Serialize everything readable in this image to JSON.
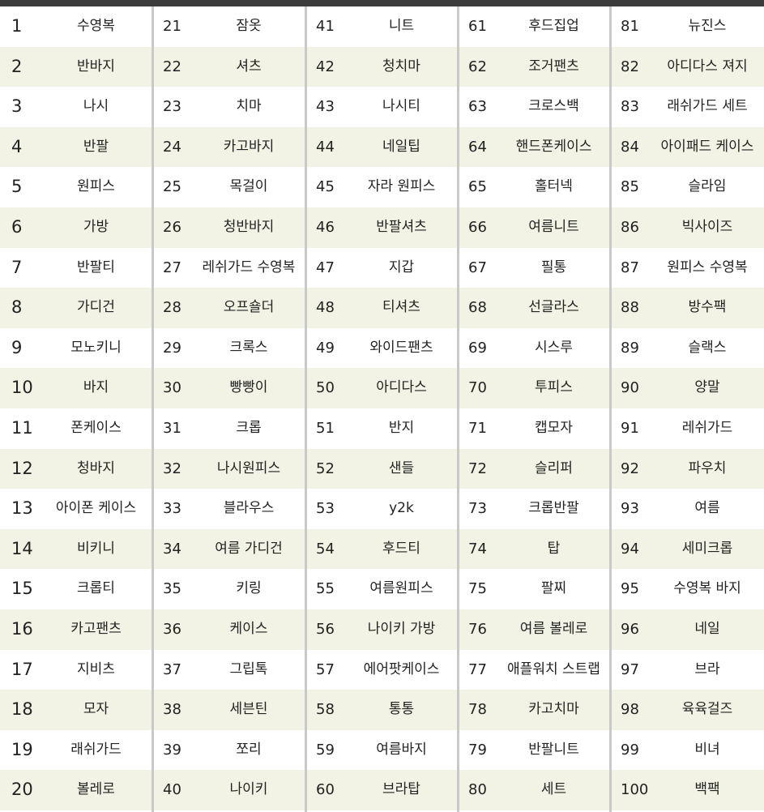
{
  "table": {
    "items": [
      [
        1,
        "수영복"
      ],
      [
        2,
        "반바지"
      ],
      [
        3,
        "나시"
      ],
      [
        4,
        "반팔"
      ],
      [
        5,
        "원피스"
      ],
      [
        6,
        "가방"
      ],
      [
        7,
        "반팔티"
      ],
      [
        8,
        "가디건"
      ],
      [
        9,
        "모노키니"
      ],
      [
        10,
        "바지"
      ],
      [
        11,
        "폰케이스"
      ],
      [
        12,
        "청바지"
      ],
      [
        13,
        "아이폰 케이스"
      ],
      [
        14,
        "비키니"
      ],
      [
        15,
        "크롭티"
      ],
      [
        16,
        "카고팬츠"
      ],
      [
        17,
        "지비츠"
      ],
      [
        18,
        "모자"
      ],
      [
        19,
        "래쉬가드"
      ],
      [
        20,
        "볼레로"
      ],
      [
        21,
        "잠옷"
      ],
      [
        22,
        "셔츠"
      ],
      [
        23,
        "치마"
      ],
      [
        24,
        "카고바지"
      ],
      [
        25,
        "목걸이"
      ],
      [
        26,
        "청반바지"
      ],
      [
        27,
        "레쉬가드 수영복"
      ],
      [
        28,
        "오프숄더"
      ],
      [
        29,
        "크록스"
      ],
      [
        30,
        "빵빵이"
      ],
      [
        31,
        "크롭"
      ],
      [
        32,
        "나시원피스"
      ],
      [
        33,
        "블라우스"
      ],
      [
        34,
        "여름 가디건"
      ],
      [
        35,
        "키링"
      ],
      [
        36,
        "케이스"
      ],
      [
        37,
        "그립톡"
      ],
      [
        38,
        "세븐틴"
      ],
      [
        39,
        "쪼리"
      ],
      [
        40,
        "나이키"
      ],
      [
        41,
        "니트"
      ],
      [
        42,
        "청치마"
      ],
      [
        43,
        "나시티"
      ],
      [
        44,
        "네일팁"
      ],
      [
        45,
        "자라 원피스"
      ],
      [
        46,
        "반팔셔츠"
      ],
      [
        47,
        "지갑"
      ],
      [
        48,
        "티셔츠"
      ],
      [
        49,
        "와이드팬츠"
      ],
      [
        50,
        "아디다스"
      ],
      [
        51,
        "반지"
      ],
      [
        52,
        "샌들"
      ],
      [
        53,
        "y2k"
      ],
      [
        54,
        "후드티"
      ],
      [
        55,
        "여름원피스"
      ],
      [
        56,
        "나이키 가방"
      ],
      [
        57,
        "에어팟케이스"
      ],
      [
        58,
        "통통"
      ],
      [
        59,
        "여름바지"
      ],
      [
        60,
        "브라탑"
      ],
      [
        61,
        "후드집업"
      ],
      [
        62,
        "조거팬츠"
      ],
      [
        63,
        "크로스백"
      ],
      [
        64,
        "핸드폰케이스"
      ],
      [
        65,
        "홀터넥"
      ],
      [
        66,
        "여름니트"
      ],
      [
        67,
        "필통"
      ],
      [
        68,
        "선글라스"
      ],
      [
        69,
        "시스루"
      ],
      [
        70,
        "투피스"
      ],
      [
        71,
        "캡모자"
      ],
      [
        72,
        "슬리퍼"
      ],
      [
        73,
        "크롭반팔"
      ],
      [
        74,
        "탑"
      ],
      [
        75,
        "팔찌"
      ],
      [
        76,
        "여름 볼레로"
      ],
      [
        77,
        "애플워치 스트랩"
      ],
      [
        78,
        "카고치마"
      ],
      [
        79,
        "반팔니트"
      ],
      [
        80,
        "세트"
      ],
      [
        81,
        "뉴진스"
      ],
      [
        82,
        "아디다스 져지"
      ],
      [
        83,
        "래쉬가드 세트"
      ],
      [
        84,
        "아이패드 케이스"
      ],
      [
        85,
        "슬라임"
      ],
      [
        86,
        "빅사이즈"
      ],
      [
        87,
        "원피스 수영복"
      ],
      [
        88,
        "방수팩"
      ],
      [
        89,
        "슬랙스"
      ],
      [
        90,
        "양말"
      ],
      [
        91,
        "레쉬가드"
      ],
      [
        92,
        "파우치"
      ],
      [
        93,
        "여름"
      ],
      [
        94,
        "세미크롭"
      ],
      [
        95,
        "수영복 바지"
      ],
      [
        96,
        "네일"
      ],
      [
        97,
        "브라"
      ],
      [
        98,
        "육육걸즈"
      ],
      [
        99,
        "비녀"
      ],
      [
        100,
        "백팩"
      ]
    ]
  }
}
